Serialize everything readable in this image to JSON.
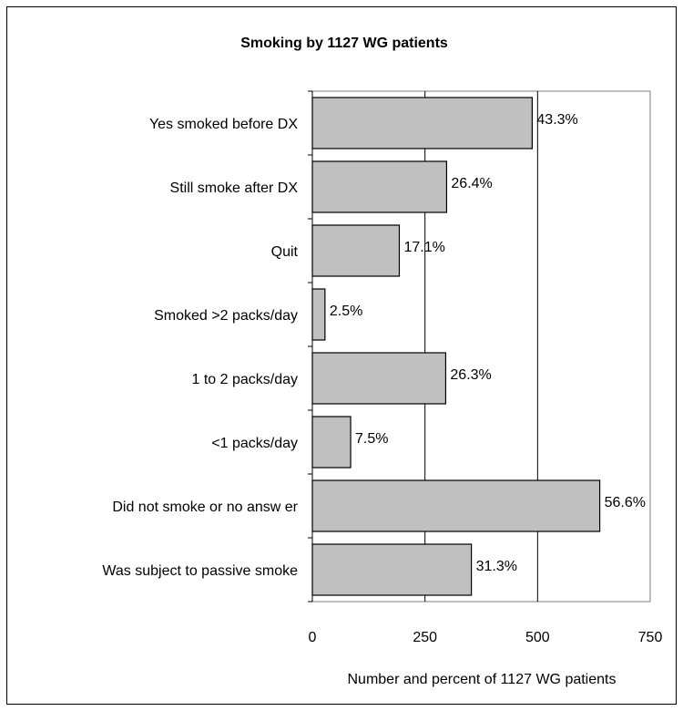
{
  "chart_data": {
    "type": "bar",
    "orientation": "horizontal",
    "title": "Smoking by 1127  WG patients",
    "xlabel": "Number and percent of 1127  WG patients",
    "ylabel": "",
    "xlim": [
      0,
      750
    ],
    "xticks": [
      0,
      250,
      500,
      750
    ],
    "grid": "vertical gridlines at 250 and 500",
    "legend": "none",
    "bar_color": "#c0c0c0",
    "categories": [
      "Yes smoked before DX",
      "Still smoke after DX",
      "Quit",
      "Smoked >2 packs/day",
      "1 to 2 packs/day",
      "<1 packs/day",
      "Did not smoke or no answ er",
      "Was subject to passive smoke"
    ],
    "values": [
      488,
      298,
      193,
      28,
      296,
      85,
      638,
      353
    ],
    "data_labels": [
      "43.3%",
      "26.4%",
      "17.1%",
      "2.5%",
      "26.3%",
      "7.5%",
      "56.6%",
      "31.3%"
    ]
  }
}
